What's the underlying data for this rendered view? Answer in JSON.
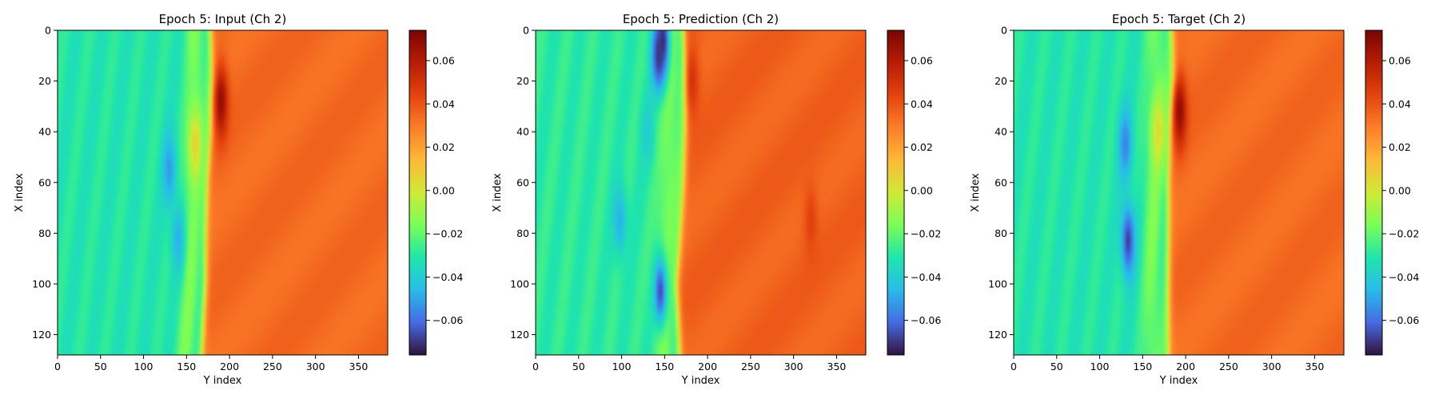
{
  "chart_data": [
    {
      "type": "heatmap",
      "title": "Epoch 5: Input (Ch 2)",
      "xlabel": "Y index",
      "ylabel": "X index",
      "xlim": [
        0,
        384
      ],
      "ylim": [
        128,
        0
      ],
      "xticks": [
        "0",
        "50",
        "100",
        "150",
        "200",
        "250",
        "300",
        "350"
      ],
      "yticks": [
        "0",
        "20",
        "40",
        "60",
        "80",
        "100",
        "120"
      ],
      "colorbar": {
        "range": [
          -0.076,
          0.074
        ],
        "ticks": [
          "0.06",
          "0.04",
          "0.02",
          "0.00",
          "−0.02",
          "−0.04",
          "−0.06"
        ]
      },
      "colormap": "turbo",
      "field": {
        "background_left": -0.031,
        "background_right": 0.034,
        "front_y": [
          [
            0,
            178
          ],
          [
            20,
            180
          ],
          [
            40,
            178
          ],
          [
            60,
            174
          ],
          [
            80,
            172
          ],
          [
            100,
            172
          ],
          [
            128,
            168
          ]
        ],
        "features": [
          {
            "y": 190,
            "x": 28,
            "value": 0.068
          },
          {
            "y": 130,
            "x": 55,
            "value": -0.052
          },
          {
            "y": 140,
            "x": 82,
            "value": -0.048
          },
          {
            "y": 160,
            "x": 45,
            "value": 0.006
          }
        ]
      }
    },
    {
      "type": "heatmap",
      "title": "Epoch 5: Prediction (Ch 2)",
      "xlabel": "Y index",
      "ylabel": "X index",
      "xlim": [
        0,
        384
      ],
      "ylim": [
        128,
        0
      ],
      "xticks": [
        "0",
        "50",
        "100",
        "150",
        "200",
        "250",
        "300",
        "350"
      ],
      "yticks": [
        "0",
        "20",
        "40",
        "60",
        "80",
        "100",
        "120"
      ],
      "colorbar": {
        "range": [
          -0.076,
          0.074
        ],
        "ticks": [
          "0.06",
          "0.04",
          "0.02",
          "0.00",
          "−0.02",
          "−0.04",
          "−0.06"
        ]
      },
      "colormap": "turbo",
      "field": {
        "background_left": -0.029,
        "background_right": 0.036,
        "front_y": [
          [
            0,
            172
          ],
          [
            20,
            176
          ],
          [
            40,
            174
          ],
          [
            60,
            172
          ],
          [
            80,
            168
          ],
          [
            100,
            164
          ],
          [
            128,
            168
          ]
        ],
        "features": [
          {
            "y": 148,
            "x": 4,
            "value": -0.072
          },
          {
            "y": 143,
            "x": 10,
            "value": -0.07
          },
          {
            "y": 145,
            "x": 103,
            "value": -0.066
          },
          {
            "y": 182,
            "x": 20,
            "value": 0.05
          },
          {
            "y": 130,
            "x": 40,
            "value": -0.04
          },
          {
            "y": 98,
            "x": 75,
            "value": -0.048
          },
          {
            "y": 320,
            "x": 75,
            "value": 0.045
          }
        ]
      }
    },
    {
      "type": "heatmap",
      "title": "Epoch 5: Target (Ch 2)",
      "xlabel": "Y index",
      "ylabel": "X index",
      "xlim": [
        0,
        384
      ],
      "ylim": [
        128,
        0
      ],
      "xticks": [
        "0",
        "50",
        "100",
        "150",
        "200",
        "250",
        "300",
        "350"
      ],
      "yticks": [
        "0",
        "20",
        "40",
        "60",
        "80",
        "100",
        "120"
      ],
      "colorbar": {
        "range": [
          -0.076,
          0.074
        ],
        "ticks": [
          "0.06",
          "0.04",
          "0.02",
          "0.00",
          "−0.02",
          "−0.04",
          "−0.06"
        ]
      },
      "colormap": "turbo",
      "field": {
        "background_left": -0.031,
        "background_right": 0.034,
        "front_y": [
          [
            0,
            184
          ],
          [
            20,
            186
          ],
          [
            40,
            182
          ],
          [
            60,
            180
          ],
          [
            80,
            180
          ],
          [
            100,
            180
          ],
          [
            128,
            180
          ]
        ],
        "features": [
          {
            "y": 193,
            "x": 32,
            "value": 0.068
          },
          {
            "y": 130,
            "x": 45,
            "value": -0.056
          },
          {
            "y": 133,
            "x": 83,
            "value": -0.068
          },
          {
            "y": 168,
            "x": 40,
            "value": 0.004
          }
        ]
      }
    }
  ]
}
